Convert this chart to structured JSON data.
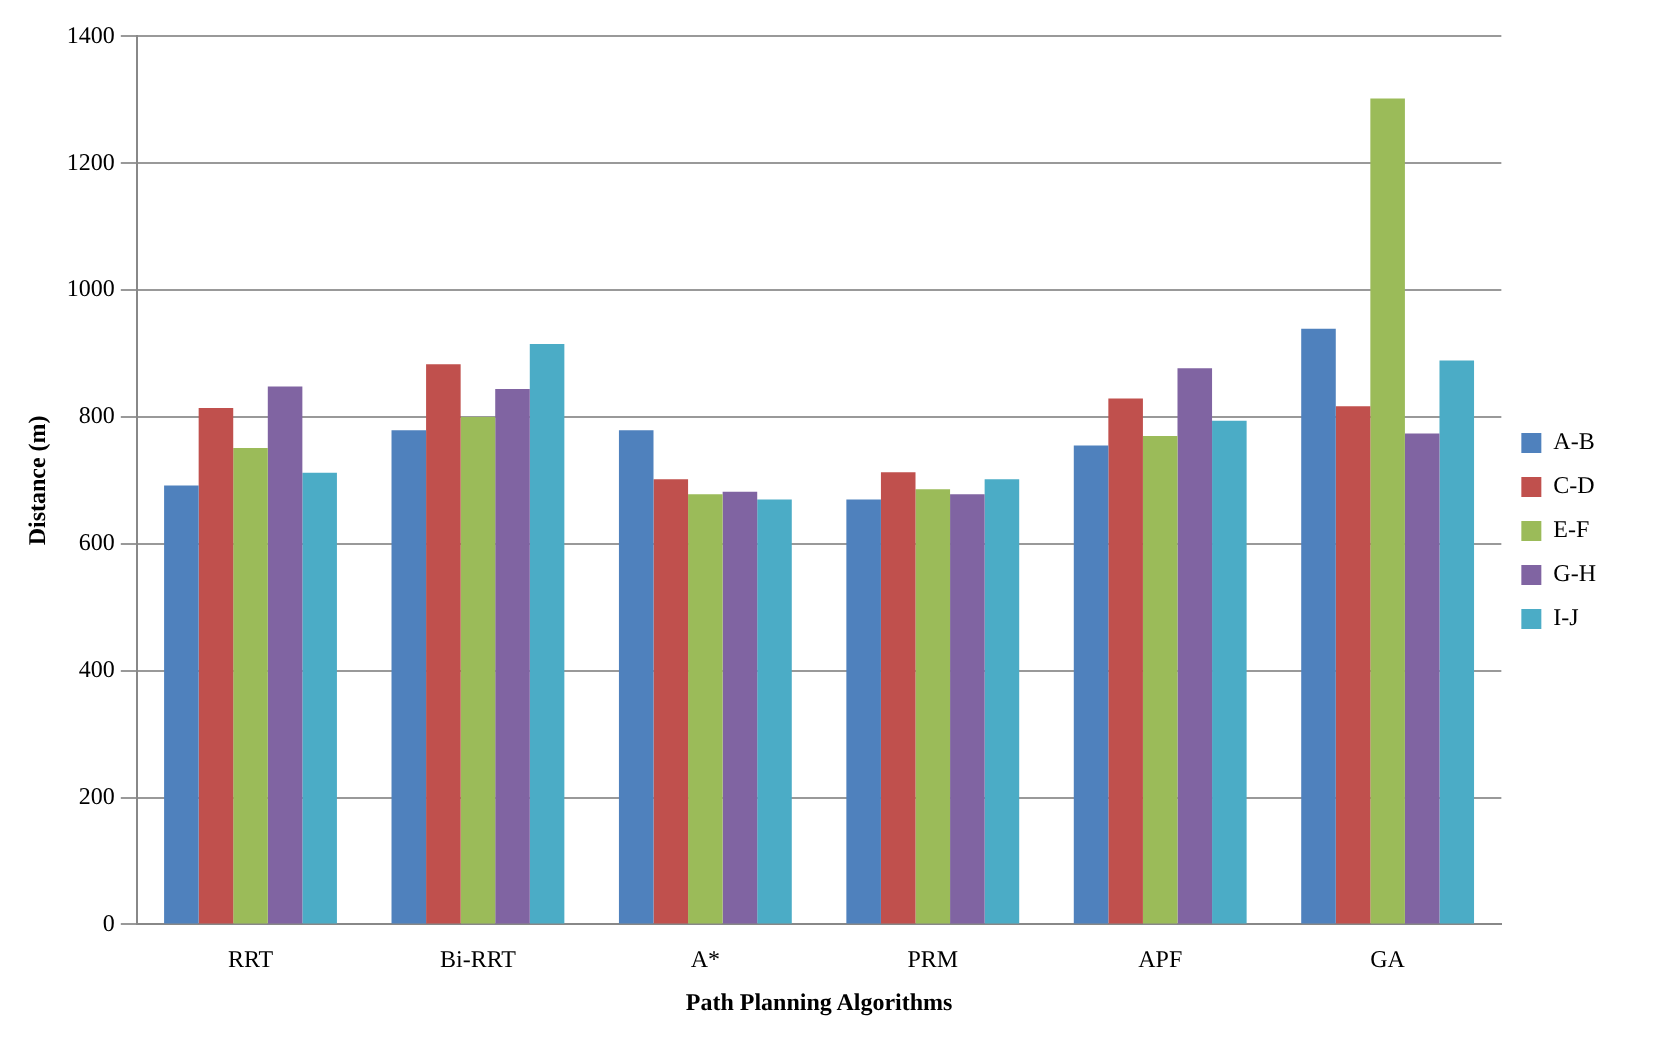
{
  "chart_data": {
    "type": "bar",
    "xlabel": "Path Planning Algorithms",
    "ylabel": "Distance (m)",
    "categories": [
      "RRT",
      "Bi-RRT",
      "A*",
      "PRM",
      "APF",
      "GA"
    ],
    "series": [
      {
        "name": "A-B",
        "color": "#4f81bd",
        "values": [
          692,
          779,
          779,
          670,
          755,
          939
        ]
      },
      {
        "name": "C-D",
        "color": "#c0504d",
        "values": [
          814,
          883,
          702,
          713,
          829,
          817
        ]
      },
      {
        "name": "E-F",
        "color": "#9bbb59",
        "values": [
          751,
          800,
          678,
          686,
          770,
          1302
        ]
      },
      {
        "name": "G-H",
        "color": "#8064a2",
        "values": [
          848,
          844,
          682,
          678,
          877,
          774
        ]
      },
      {
        "name": "I-J",
        "color": "#4bacc6",
        "values": [
          712,
          915,
          670,
          702,
          794,
          889
        ]
      }
    ],
    "ylim": [
      0,
      1400
    ],
    "yticks": [
      0,
      200,
      400,
      600,
      800,
      1000,
      1200,
      1400
    ],
    "grid": "y",
    "legend": "right"
  }
}
